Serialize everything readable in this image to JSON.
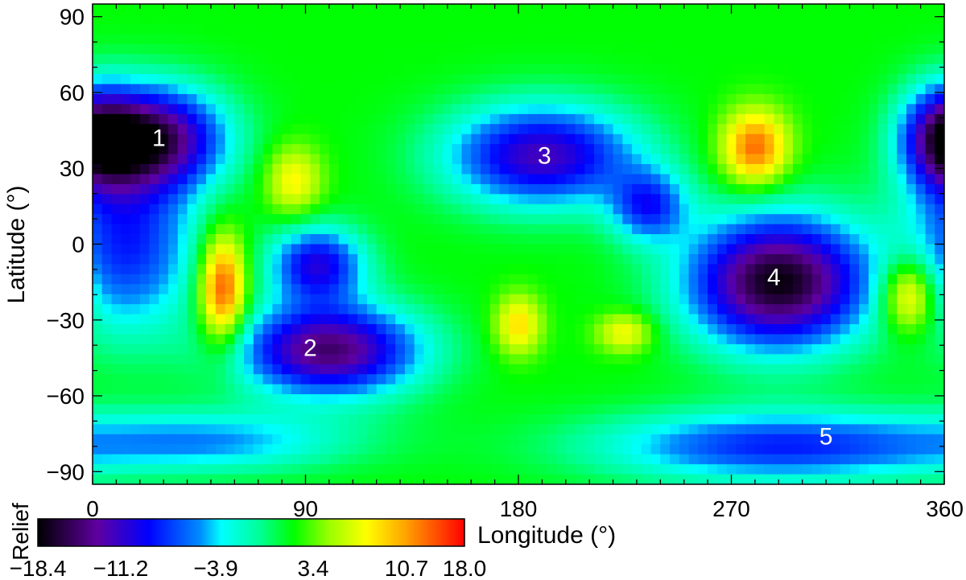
{
  "chart_data": {
    "type": "heatmap",
    "title": "",
    "xlabel": "Longitude (°)",
    "ylabel": "Latitude (°)",
    "xlim": [
      0,
      360
    ],
    "ylim": [
      -95,
      95
    ],
    "x_ticks": [
      "0",
      "90",
      "180",
      "270",
      "360"
    ],
    "x_tick_values": [
      0,
      90,
      180,
      270,
      360
    ],
    "y_ticks": [
      "90",
      "60",
      "30",
      "0",
      "−30",
      "−60",
      "−90"
    ],
    "y_tick_values": [
      90,
      60,
      30,
      0,
      -30,
      -60,
      -90
    ],
    "colorbar": {
      "label": "Relief",
      "ticks": [
        "−18.4",
        "−11.2",
        "−3.9",
        "3.4",
        "10.7",
        "18.0"
      ],
      "min": -18.4,
      "max": 18.0,
      "colormap": "rainbow (black-purple-blue-cyan-green-yellow-red)"
    },
    "base_value": 3.4,
    "features": [
      {
        "lon": 25,
        "lat": 42,
        "lon_radius": 30,
        "lat_radius": 20,
        "value": -15.5
      },
      {
        "lon": 15,
        "lat": 0,
        "lon_radius": 30,
        "lat_radius": 35,
        "value": -8
      },
      {
        "lon": 100,
        "lat": -42,
        "lon_radius": 38,
        "lat_radius": 18,
        "value": -15
      },
      {
        "lon": 95,
        "lat": -8,
        "lon_radius": 20,
        "lat_radius": 15,
        "value": -10
      },
      {
        "lon": 190,
        "lat": 35,
        "lon_radius": 40,
        "lat_radius": 20,
        "value": -12
      },
      {
        "lon": 235,
        "lat": 15,
        "lon_radius": 16,
        "lat_radius": 14,
        "value": -7
      },
      {
        "lon": 290,
        "lat": -15,
        "lon_radius": 38,
        "lat_radius": 26,
        "value": -18
      },
      {
        "lon": 290,
        "lat": -80,
        "lon_radius": 75,
        "lat_radius": 14,
        "value": -8
      },
      {
        "lon": 50,
        "lat": -78,
        "lon_radius": 60,
        "lat_radius": 12,
        "value": -4
      },
      {
        "lon": 360,
        "lat": 42,
        "lon_radius": 18,
        "lat_radius": 20,
        "value": -10
      },
      {
        "lon": 55,
        "lat": -18,
        "lon_radius": 10,
        "lat_radius": 22,
        "value": 17
      },
      {
        "lon": 85,
        "lat": 25,
        "lon_radius": 12,
        "lat_radius": 14,
        "value": 10
      },
      {
        "lon": 280,
        "lat": 38,
        "lon_radius": 14,
        "lat_radius": 15,
        "value": 15
      },
      {
        "lon": 345,
        "lat": -20,
        "lon_radius": 12,
        "lat_radius": 15,
        "value": 14
      },
      {
        "lon": 180,
        "lat": -32,
        "lon_radius": 10,
        "lat_radius": 12,
        "value": 11
      },
      {
        "lon": 225,
        "lat": -35,
        "lon_radius": 12,
        "lat_radius": 8,
        "value": 10
      }
    ],
    "region_labels": [
      {
        "text": "1",
        "lon": 28,
        "lat": 42
      },
      {
        "text": "2",
        "lon": 92,
        "lat": -41
      },
      {
        "text": "3",
        "lon": 191,
        "lat": 35
      },
      {
        "text": "4",
        "lon": 288,
        "lat": -13
      },
      {
        "text": "5",
        "lon": 310,
        "lat": -76
      }
    ]
  }
}
